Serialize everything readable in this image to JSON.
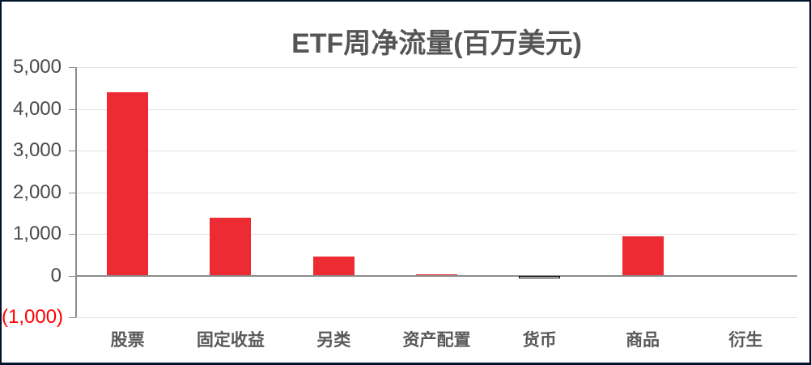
{
  "chart_data": {
    "type": "bar",
    "title": "ETF周净流量(百万美元)",
    "categories": [
      "股票",
      "固定收益",
      "另类",
      "资产配置",
      "货币",
      "商品",
      "衍生"
    ],
    "values": [
      4400,
      1390,
      460,
      30,
      -60,
      940,
      0
    ],
    "xlabel": "",
    "ylabel": "",
    "ylim": [
      -1000,
      5000
    ],
    "grid": true,
    "legend": "none",
    "y_ticks": [
      {
        "value": 5000,
        "label": "5,000"
      },
      {
        "value": 4000,
        "label": "4,000"
      },
      {
        "value": 3000,
        "label": "3,000"
      },
      {
        "value": 2000,
        "label": "2,000"
      },
      {
        "value": 1000,
        "label": "1,000"
      },
      {
        "value": 0,
        "label": "0"
      },
      {
        "value": -1000,
        "label": "(1,000)"
      }
    ],
    "colors": {
      "bar_positive": "#ec2b33",
      "bar_negative_fill": "#ffffff",
      "bar_negative_border": "#000000",
      "negative_tick_label": "#ff0000",
      "axis_line": "#8c8c8c",
      "gridline": "#e3e3e3",
      "title_text": "#555555",
      "tick_text": "#4a4a4a",
      "category_text": "#595959",
      "frame_border": "#02152e",
      "background": "#ffffff"
    }
  }
}
